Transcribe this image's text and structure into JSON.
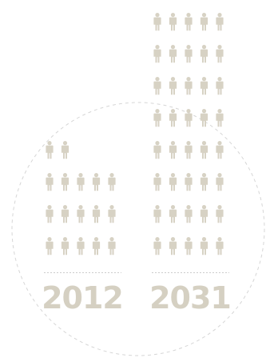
{
  "chart_data": {
    "type": "pictograph",
    "unit": "person icon",
    "categories": [
      "2012",
      "2031"
    ],
    "values": [
      17,
      42
    ],
    "icons_per_row": 5,
    "grid": false,
    "legend": "none"
  },
  "colors": {
    "icon": "#d7d2c4",
    "label": "#d5d0c2",
    "circle": "#d6d6d6",
    "baseline": "#cccccc",
    "background": "#ffffff"
  }
}
